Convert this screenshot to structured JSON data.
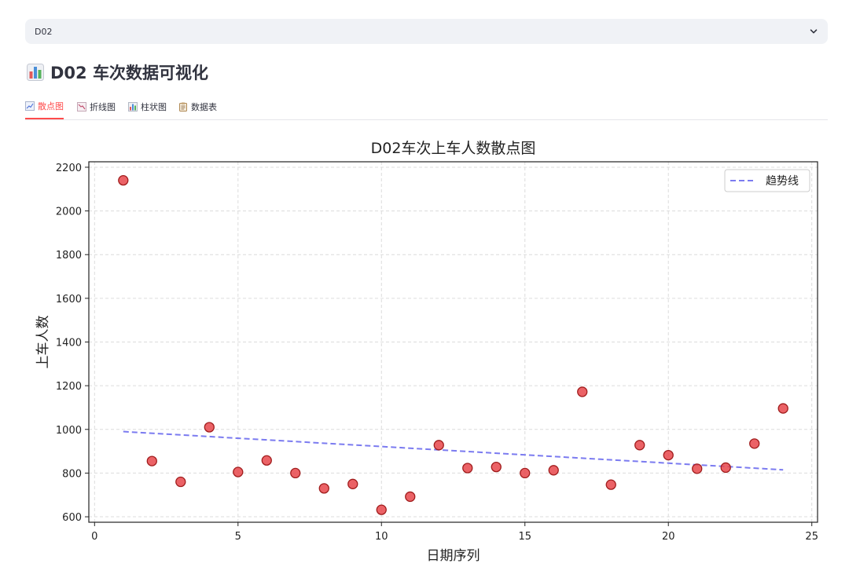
{
  "select": {
    "value": "D02",
    "icon": "chevron-down-icon"
  },
  "header": {
    "title": "D02 车次数据可视化",
    "icon": "bar-chart-icon"
  },
  "tabs": [
    {
      "label": "散点图",
      "icon": "scatter-chart-icon",
      "active": true
    },
    {
      "label": "折线图",
      "icon": "line-chart-icon",
      "active": false
    },
    {
      "label": "柱状图",
      "icon": "bar-chart-icon",
      "active": false
    },
    {
      "label": "数据表",
      "icon": "clipboard-icon",
      "active": false
    }
  ],
  "colors": {
    "accent": "#ff4b4b",
    "point": "#e8474b",
    "point_edge": "#a01c1c",
    "trend": "#7b7bf0"
  },
  "chart_data": {
    "type": "scatter",
    "title": "D02车次上车人数散点图",
    "xlabel": "日期序列",
    "ylabel": "上车人数",
    "xlim": [
      -0.2,
      25.2
    ],
    "ylim": [
      575,
      2225
    ],
    "xticks": [
      0,
      5,
      10,
      15,
      20,
      25
    ],
    "yticks": [
      600,
      800,
      1000,
      1200,
      1400,
      1600,
      1800,
      2000,
      2200
    ],
    "grid": true,
    "legend_position": "top-right",
    "series": [
      {
        "type": "scatter",
        "x": [
          1,
          2,
          3,
          4,
          5,
          6,
          7,
          8,
          9,
          10,
          11,
          12,
          13,
          14,
          15,
          16,
          17,
          18,
          19,
          20,
          21,
          22,
          23,
          24
        ],
        "y": [
          2140,
          855,
          760,
          1010,
          805,
          858,
          800,
          730,
          750,
          632,
          692,
          928,
          823,
          828,
          800,
          813,
          1172,
          747,
          928,
          882,
          820,
          825,
          935,
          1096
        ]
      },
      {
        "name": "趋势线",
        "type": "line",
        "style": "dashed",
        "x": [
          1,
          24
        ],
        "y": [
          990,
          815
        ]
      }
    ]
  }
}
